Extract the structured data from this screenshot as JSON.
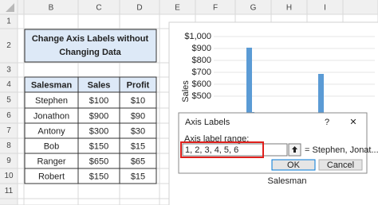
{
  "column_headers": [
    "B",
    "C",
    "D",
    "E",
    "F",
    "G",
    "H",
    "I"
  ],
  "row_headers": [
    "1",
    "2",
    "3",
    "4",
    "5",
    "6",
    "7",
    "8",
    "9",
    "10",
    "11"
  ],
  "title_box": {
    "lines": [
      "Change Axis Labels without",
      "Changing Data"
    ]
  },
  "table": {
    "header": [
      "Salesman",
      "Sales",
      "Profit"
    ],
    "rows": [
      [
        "Stephen",
        "$100",
        "$10"
      ],
      [
        "Jonathon",
        "$900",
        "$90"
      ],
      [
        "Antony",
        "$300",
        "$30"
      ],
      [
        "Bob",
        "$150",
        "$15"
      ],
      [
        "Ranger",
        "$650",
        "$65"
      ],
      [
        "Robert",
        "$150",
        "$15"
      ]
    ]
  },
  "chart": {
    "y_axis_labels": [
      "$1,000",
      "$900",
      "$800",
      "$700",
      "$600",
      "$500"
    ],
    "y_axis_title": "Sales",
    "x_axis_title": "Salesman"
  },
  "dialog": {
    "title": "Axis Labels",
    "help": "?",
    "close": "✕",
    "field_label": "Axis label range:",
    "field_value": "1, 2, 3, 4, 5, 6",
    "preview": "= Stephen, Jonat...",
    "ok": "OK",
    "cancel": "Cancel"
  }
}
